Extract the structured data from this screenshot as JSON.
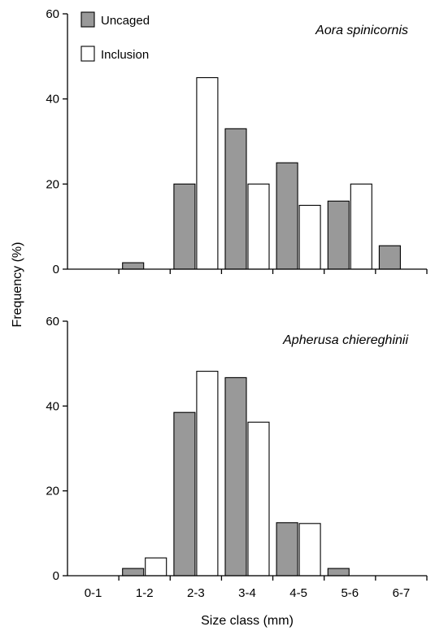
{
  "chart_data": {
    "type": "bar",
    "categories": [
      "0-1",
      "1-2",
      "2-3",
      "3-4",
      "4-5",
      "5-6",
      "6-7"
    ],
    "xlabel": "Size class (mm)",
    "ylabel": "Frequency (%)",
    "ylim": [
      0,
      60
    ],
    "yticks": [
      0,
      20,
      40,
      60
    ],
    "grid": false,
    "legend": {
      "placement": "top-left",
      "entries": [
        {
          "name": "Uncaged",
          "color": "#999999"
        },
        {
          "name": "Inclusion",
          "color": "#ffffff"
        }
      ]
    },
    "panels": [
      {
        "title": "Aora spinicornis",
        "series": [
          {
            "name": "Uncaged",
            "values": [
              0,
              1.5,
              20,
              33,
              25,
              16,
              5.5
            ]
          },
          {
            "name": "Inclusion",
            "values": [
              0,
              0,
              45,
              20,
              15,
              20,
              0
            ]
          }
        ]
      },
      {
        "title": "Apherusa chiereghinii",
        "series": [
          {
            "name": "Uncaged",
            "values": [
              0,
              1.7,
              38.5,
              46.7,
              12.5,
              1.7,
              0
            ]
          },
          {
            "name": "Inclusion",
            "values": [
              0,
              4.2,
              48.2,
              36.2,
              12.3,
              0,
              0
            ]
          }
        ]
      }
    ]
  }
}
